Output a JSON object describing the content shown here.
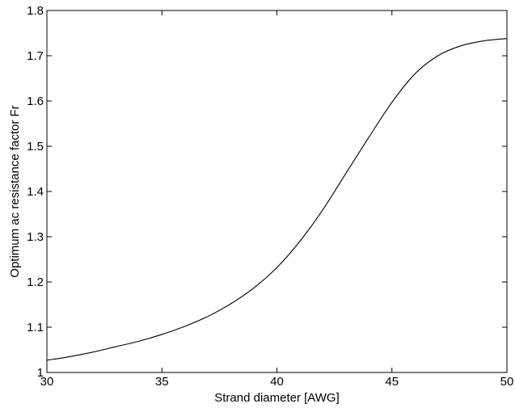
{
  "chart_data": {
    "type": "line",
    "title": "",
    "xlabel": "Strand diameter [AWG]",
    "ylabel": "Optimum ac resistance factor Fr",
    "xlim": [
      30,
      50
    ],
    "ylim": [
      1,
      1.8
    ],
    "xticks": [
      30,
      35,
      40,
      45,
      50
    ],
    "yticks": [
      1,
      1.1,
      1.2,
      1.3,
      1.4,
      1.5,
      1.6,
      1.7,
      1.8
    ],
    "xtick_labels": [
      "30",
      "35",
      "40",
      "45",
      "50"
    ],
    "ytick_labels": [
      "1",
      "1.1",
      "1.2",
      "1.3",
      "1.4",
      "1.5",
      "1.6",
      "1.7",
      "1.8"
    ],
    "grid": false,
    "series": [
      {
        "color": "#000000",
        "x": [
          30,
          31,
          32,
          33,
          34,
          35,
          36,
          37,
          38,
          39,
          40,
          41,
          42,
          43,
          44,
          45,
          46,
          47,
          48,
          49,
          50
        ],
        "y": [
          1.027,
          1.035,
          1.045,
          1.057,
          1.069,
          1.084,
          1.102,
          1.124,
          1.152,
          1.187,
          1.232,
          1.29,
          1.36,
          1.44,
          1.52,
          1.597,
          1.66,
          1.7,
          1.722,
          1.733,
          1.738
        ]
      }
    ]
  }
}
